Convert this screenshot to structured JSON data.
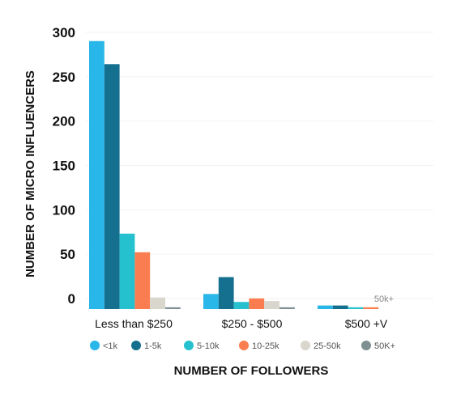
{
  "chart_data": {
    "type": "bar",
    "xlabel": "NUMBER OF FOLLOWERS",
    "ylabel": "NUMBER OF MICRO INFLUENCERS",
    "categories": [
      "Less than $250",
      "$250 - $500",
      "$500 +V"
    ],
    "ylim": [
      0,
      310
    ],
    "yticks": [
      "0",
      "50",
      "100",
      "150",
      "200",
      "250",
      "300"
    ],
    "legend_position": "bottom",
    "series": [
      {
        "name": "<1k",
        "color": "#29b6e8",
        "values": [
          302,
          17,
          4
        ]
      },
      {
        "name": "1-5k",
        "color": "#156f8f",
        "values": [
          276,
          36,
          4
        ]
      },
      {
        "name": "5-10k",
        "color": "#26c1cf",
        "values": [
          85,
          8,
          2
        ]
      },
      {
        "name": "10-25k",
        "color": "#fa7d51",
        "values": [
          64,
          12,
          2
        ]
      },
      {
        "name": "25-50k",
        "color": "#d9d6ce",
        "values": [
          13,
          9,
          0
        ]
      },
      {
        "name": "50K+",
        "color": "#7f9092",
        "values": [
          2,
          2,
          0
        ]
      }
    ],
    "annotations": [
      {
        "text": "50k+",
        "category": "$500 +V"
      }
    ]
  }
}
